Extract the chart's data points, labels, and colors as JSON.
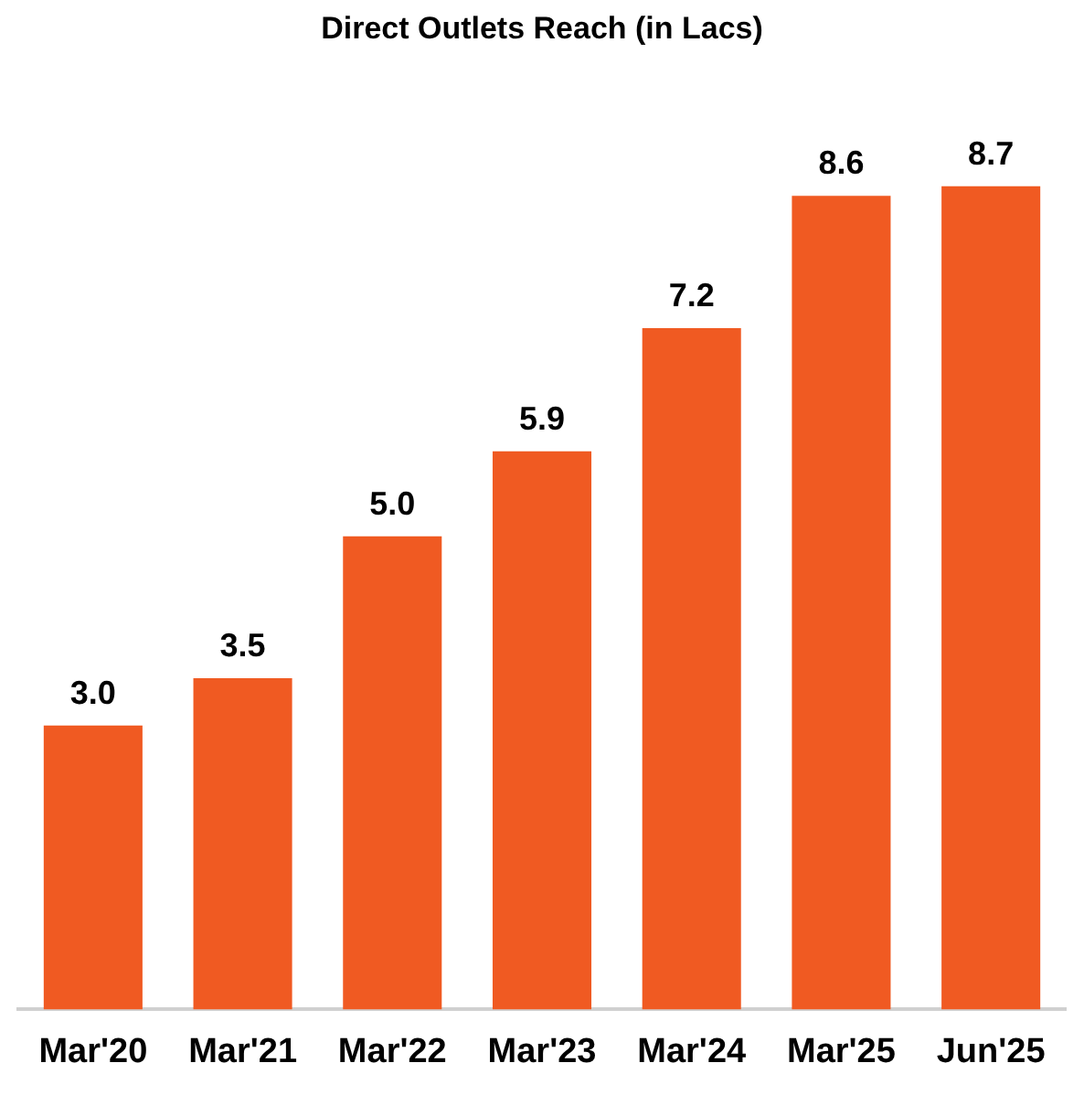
{
  "chart_data": {
    "type": "bar",
    "title": "Direct Outlets Reach (in Lacs)",
    "categories": [
      "Mar'20",
      "Mar'21",
      "Mar'22",
      "Mar'23",
      "Mar'24",
      "Mar'25",
      "Jun'25"
    ],
    "values": [
      3.0,
      3.5,
      5.0,
      5.9,
      7.2,
      8.6,
      8.7
    ],
    "value_labels": [
      "3.0",
      "3.5",
      "5.0",
      "5.9",
      "7.2",
      "8.6",
      "8.7"
    ],
    "color": "#f05a22",
    "grid": false,
    "legend": false
  }
}
